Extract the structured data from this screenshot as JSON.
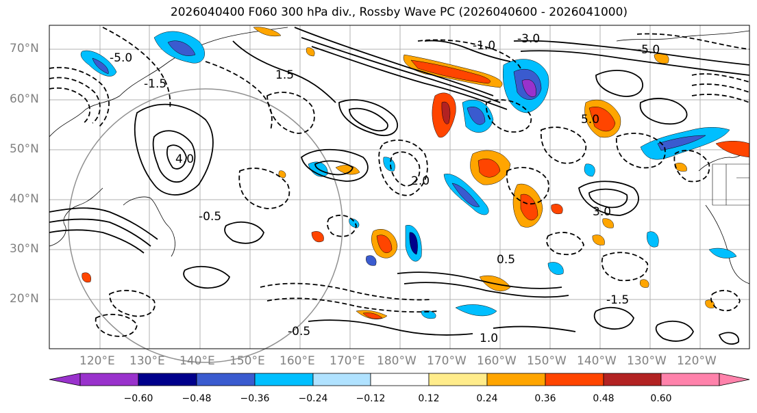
{
  "title": "2026040400 F060 300 hPa div., Rossby Wave PC (2026040600 - 2026041000)",
  "map": {
    "lat_labels": [
      "70°N",
      "60°N",
      "50°N",
      "40°N",
      "30°N",
      "20°N"
    ],
    "lon_labels": [
      "120°E",
      "130°E",
      "140°E",
      "150°E",
      "160°E",
      "170°E",
      "180°W",
      "170°W",
      "160°W",
      "150°W",
      "140°W",
      "130°W",
      "120°W"
    ],
    "contour_labels": [
      "-5.0",
      "-1.5",
      "-0.5",
      "1.5",
      "4.0",
      "-1.0",
      "2.0",
      "-3.0",
      "3.0",
      "1.0",
      "0.5",
      "-0.5",
      "-5.0",
      "5.0",
      "-1.5"
    ]
  },
  "colorbar": {
    "ticks": [
      "−0.60",
      "−0.48",
      "−0.36",
      "−0.24",
      "−0.12",
      "0.12",
      "0.24",
      "0.36",
      "0.48",
      "0.60"
    ],
    "colors": [
      "#9932CC",
      "#00008B",
      "#3A5BCF",
      "#00BFFF",
      "#B0E2FF",
      "#FFFFFF",
      "#FFEC8B",
      "#FFA500",
      "#FF4500",
      "#B22222",
      "#FF82AB"
    ]
  }
}
